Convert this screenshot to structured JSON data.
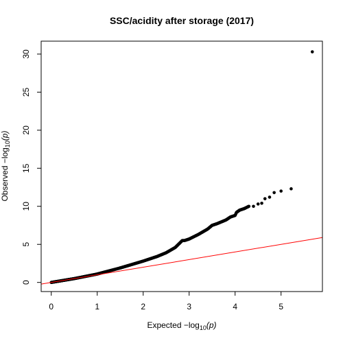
{
  "chart_data": {
    "type": "scatter",
    "title": "SSC/acidity after storage (2017)",
    "xlabel": {
      "prefix": "Expected  −log",
      "sub": "10",
      "suffix": "(p)"
    },
    "ylabel": {
      "prefix": "Observed  −log",
      "sub": "10",
      "suffix": "(p)"
    },
    "xlim": [
      -0.22,
      5.9
    ],
    "ylim": [
      -1.2,
      31.7
    ],
    "xticks": [
      0,
      1,
      2,
      3,
      4,
      5
    ],
    "yticks": [
      0,
      5,
      10,
      15,
      20,
      25,
      30
    ],
    "xtick_labels": [
      "0",
      "1",
      "2",
      "3",
      "4",
      "5"
    ],
    "ytick_labels": [
      "0",
      "5",
      "10",
      "15",
      "20",
      "25",
      "30"
    ],
    "reference_line": {
      "slope": 1,
      "intercept": 0,
      "color": "#ff0000"
    },
    "point_color": "#000000",
    "curve": {
      "x": [
        0,
        0.5,
        1.0,
        1.5,
        2.0,
        2.3,
        2.5,
        2.7,
        2.8,
        2.85,
        2.9,
        3.0,
        3.2,
        3.4,
        3.5,
        3.6,
        3.8,
        3.9,
        4.0,
        4.03,
        4.1,
        4.2,
        4.3
      ],
      "y": [
        0,
        0.5,
        1.1,
        1.9,
        2.8,
        3.4,
        3.9,
        4.6,
        5.2,
        5.5,
        5.5,
        5.7,
        6.3,
        7.0,
        7.5,
        7.7,
        8.2,
        8.6,
        8.8,
        9.2,
        9.5,
        9.7,
        10.0
      ]
    },
    "outliers": {
      "x": [
        4.4,
        4.5,
        4.58,
        4.65,
        4.75,
        4.85,
        5.0,
        5.22,
        5.68
      ],
      "y": [
        10.0,
        10.3,
        10.4,
        11.0,
        11.2,
        11.8,
        12.0,
        12.3,
        30.3
      ]
    }
  }
}
